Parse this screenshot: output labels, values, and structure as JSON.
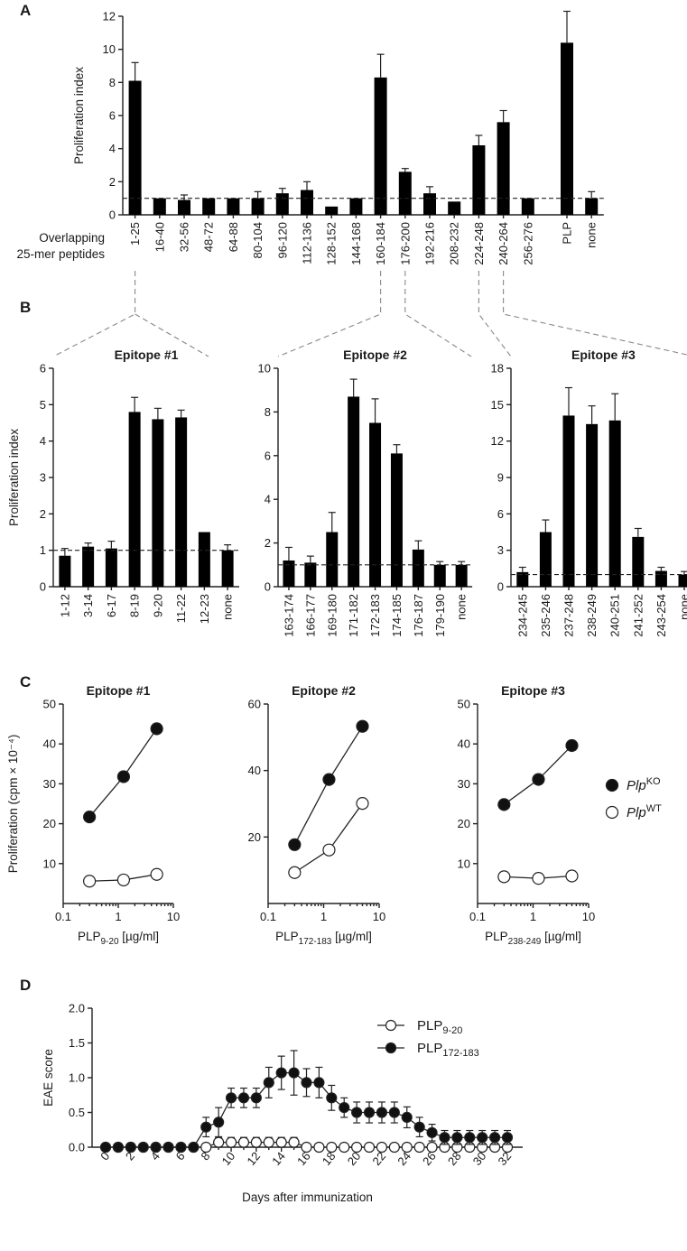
{
  "panels": {
    "a": "A",
    "b": "B",
    "c": "C",
    "d": "D"
  },
  "panel_a_row_label": [
    "Overlapping",
    "25-mer peptides"
  ],
  "chart_data": [
    {
      "id": "A",
      "type": "bar",
      "ylabel": "Proliferation index",
      "ylim": [
        0,
        12
      ],
      "yticks": [
        0,
        2,
        4,
        6,
        8,
        10,
        12
      ],
      "reference_line": 1,
      "categories": [
        "1-25",
        "16-40",
        "32-56",
        "48-72",
        "64-88",
        "80-104",
        "96-120",
        "112-136",
        "128-152",
        "144-168",
        "160-184",
        "176-200",
        "192-216",
        "208-232",
        "224-248",
        "240-264",
        "256-276",
        "PLP",
        "none"
      ],
      "values": [
        8.1,
        1.0,
        0.9,
        1.0,
        1.0,
        1.0,
        1.3,
        1.5,
        0.5,
        1.0,
        8.3,
        2.6,
        1.3,
        0.8,
        4.2,
        5.6,
        1.0,
        10.4,
        1.0
      ],
      "errors": [
        1.1,
        0,
        0.3,
        0,
        0,
        0.4,
        0.3,
        0.5,
        0,
        0,
        1.4,
        0.2,
        0.4,
        0,
        0.6,
        0.7,
        0,
        1.9,
        0.4
      ]
    },
    {
      "id": "B1",
      "type": "bar",
      "title": "Epitope #1",
      "ylabel": "Proliferation index",
      "ylim": [
        0,
        6
      ],
      "yticks": [
        0,
        1,
        2,
        3,
        4,
        5,
        6
      ],
      "reference_line": 1,
      "categories": [
        "1-12",
        "3-14",
        "6-17",
        "8-19",
        "9-20",
        "11-22",
        "12-23",
        "none"
      ],
      "values": [
        0.85,
        1.1,
        1.05,
        4.8,
        4.6,
        4.65,
        1.5,
        1.0
      ],
      "errors": [
        0.2,
        0.1,
        0.2,
        0.4,
        0.3,
        0.2,
        0,
        0.15
      ]
    },
    {
      "id": "B2",
      "type": "bar",
      "title": "Epitope #2",
      "ylabel": "",
      "ylim": [
        0,
        10
      ],
      "yticks": [
        0,
        2,
        4,
        6,
        8,
        10
      ],
      "reference_line": 1,
      "categories": [
        "163-174",
        "166-177",
        "169-180",
        "171-182",
        "172-183",
        "174-185",
        "176-187",
        "179-190",
        "none"
      ],
      "values": [
        1.2,
        1.1,
        2.5,
        8.7,
        7.5,
        6.1,
        1.7,
        1.0,
        1.0
      ],
      "errors": [
        0.6,
        0.3,
        0.9,
        0.8,
        1.1,
        0.4,
        0.4,
        0.15,
        0.15
      ]
    },
    {
      "id": "B3",
      "type": "bar",
      "title": "Epitope #3",
      "ylabel": "",
      "ylim": [
        0,
        18
      ],
      "yticks": [
        0,
        3,
        6,
        9,
        12,
        15,
        18
      ],
      "reference_line": 1,
      "categories": [
        "234-245",
        "235-246",
        "237-248",
        "238-249",
        "240-251",
        "241-252",
        "243-254",
        "none"
      ],
      "values": [
        1.2,
        4.5,
        14.1,
        13.4,
        13.7,
        4.1,
        1.3,
        1.0
      ],
      "errors": [
        0.4,
        1.0,
        2.3,
        1.5,
        2.2,
        0.7,
        0.3,
        0.25
      ]
    },
    {
      "id": "C1",
      "type": "line",
      "title": "Epitope #1",
      "ylabel": "Proliferation (cpm × 10⁻⁴)",
      "xlabel": {
        "base": "PLP",
        "sub": "9-20",
        "unit": " [µg/ml]"
      },
      "xscale": "log",
      "xlim": [
        0.1,
        10
      ],
      "xticks": [
        "0.1",
        "1",
        "10"
      ],
      "ylim": [
        0,
        50
      ],
      "yticks": [
        10,
        20,
        30,
        40,
        50
      ],
      "x": [
        0.3,
        1.25,
        5
      ],
      "series": [
        {
          "name": "PlpKO",
          "filled": true,
          "values": [
            21.7,
            31.8,
            43.8
          ]
        },
        {
          "name": "PlpWT",
          "filled": false,
          "values": [
            5.6,
            5.9,
            7.3
          ]
        }
      ]
    },
    {
      "id": "C2",
      "type": "line",
      "title": "Epitope #2",
      "ylabel": "",
      "xlabel": {
        "base": "PLP",
        "sub": "172-183",
        "unit": " [µg/ml]"
      },
      "xscale": "log",
      "xlim": [
        0.1,
        10
      ],
      "xticks": [
        "0.1",
        "1",
        "10"
      ],
      "ylim": [
        0,
        60
      ],
      "yticks": [
        20,
        40,
        60
      ],
      "x": [
        0.3,
        1.25,
        5
      ],
      "series": [
        {
          "name": "PlpKO",
          "filled": true,
          "values": [
            17.7,
            37.3,
            53.3
          ]
        },
        {
          "name": "PlpWT",
          "filled": false,
          "values": [
            9.3,
            16.1,
            30.1
          ]
        }
      ]
    },
    {
      "id": "C3",
      "type": "line",
      "title": "Epitope #3",
      "ylabel": "",
      "xlabel": {
        "base": "PLP",
        "sub": "238-249",
        "unit": " [µg/ml]"
      },
      "xscale": "log",
      "xlim": [
        0.1,
        10
      ],
      "xticks": [
        "0.1",
        "1",
        "10"
      ],
      "ylim": [
        0,
        50
      ],
      "yticks": [
        10,
        20,
        30,
        40,
        50
      ],
      "x": [
        0.3,
        1.25,
        5
      ],
      "series": [
        {
          "name": "PlpKO",
          "filled": true,
          "values": [
            24.8,
            31.1,
            39.6
          ]
        },
        {
          "name": "PlpWT",
          "filled": false,
          "values": [
            6.7,
            6.3,
            6.9
          ]
        }
      ]
    },
    {
      "id": "D",
      "type": "line",
      "ylabel": "EAE score",
      "xlabel": "Days after immunization",
      "xlim": [
        0,
        32
      ],
      "xticks": [
        "0",
        "2",
        "4",
        "6",
        "8",
        "10",
        "12",
        "14",
        "16",
        "18",
        "20",
        "22",
        "24",
        "26",
        "28",
        "30",
        "32"
      ],
      "ylim": [
        0,
        2.0
      ],
      "yticks": [
        "0.0",
        "0.5",
        "1.0",
        "1.5",
        "2.0"
      ],
      "x": [
        0,
        1,
        2,
        3,
        4,
        5,
        6,
        7,
        8,
        9,
        10,
        11,
        12,
        13,
        14,
        15,
        16,
        17,
        18,
        19,
        20,
        21,
        22,
        23,
        24,
        25,
        26,
        27,
        28,
        29,
        30,
        31,
        32
      ],
      "series": [
        {
          "name": "PLP9-20",
          "filled": false,
          "values": [
            0,
            0,
            0,
            0,
            0,
            0,
            0,
            0,
            0,
            0.07,
            0.07,
            0.07,
            0.07,
            0.07,
            0.07,
            0.07,
            0,
            0,
            0,
            0,
            0,
            0,
            0,
            0,
            0,
            0,
            0,
            0,
            0,
            0,
            0,
            0,
            0
          ],
          "errors": [
            0,
            0,
            0,
            0,
            0,
            0,
            0,
            0,
            0,
            0.07,
            0.07,
            0.07,
            0.07,
            0.07,
            0.07,
            0.07,
            0,
            0,
            0,
            0,
            0,
            0,
            0,
            0,
            0,
            0,
            0,
            0,
            0,
            0,
            0,
            0,
            0
          ]
        },
        {
          "name": "PLP172-183",
          "filled": true,
          "values": [
            0,
            0,
            0,
            0,
            0,
            0,
            0,
            0,
            0.29,
            0.36,
            0.71,
            0.71,
            0.71,
            0.93,
            1.07,
            1.07,
            0.93,
            0.93,
            0.71,
            0.57,
            0.5,
            0.5,
            0.5,
            0.5,
            0.43,
            0.29,
            0.21,
            0.14,
            0.14,
            0.14,
            0.14,
            0.14,
            0.14
          ],
          "errors": [
            0,
            0,
            0,
            0,
            0,
            0,
            0,
            0,
            0.14,
            0.21,
            0.14,
            0.14,
            0.14,
            0.22,
            0.24,
            0.32,
            0.2,
            0.22,
            0.18,
            0.14,
            0.15,
            0.15,
            0.15,
            0.15,
            0.15,
            0.14,
            0.12,
            0.1,
            0.1,
            0.1,
            0.1,
            0.1,
            0.1
          ]
        }
      ]
    }
  ],
  "legend_c": [
    {
      "base": "Plp",
      "sup": "KO"
    },
    {
      "base": "Plp",
      "sup": "WT"
    }
  ],
  "legend_d": [
    {
      "base": "PLP",
      "sub": "9-20"
    },
    {
      "base": "PLP",
      "sub": "172-183"
    }
  ]
}
